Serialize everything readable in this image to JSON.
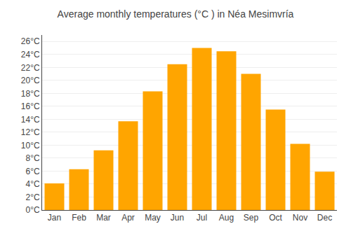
{
  "chart_data": {
    "type": "bar",
    "title": "Average monthly temperatures (°C ) in Néa Mesimvría",
    "categories": [
      "Jan",
      "Feb",
      "Mar",
      "Apr",
      "May",
      "Jun",
      "Jul",
      "Aug",
      "Sep",
      "Oct",
      "Nov",
      "Dec"
    ],
    "values": [
      4.1,
      6.3,
      9.2,
      13.7,
      18.3,
      22.5,
      25.0,
      24.5,
      21.0,
      15.5,
      10.2,
      5.9
    ],
    "color": "#FFA500",
    "ylim": [
      0,
      27
    ],
    "yticks": [
      {
        "value": 0,
        "label": "0°C"
      },
      {
        "value": 2,
        "label": "2°C"
      },
      {
        "value": 4,
        "label": "4°C"
      },
      {
        "value": 6,
        "label": "6°C"
      },
      {
        "value": 8,
        "label": "8°C"
      },
      {
        "value": 10,
        "label": "10°C"
      },
      {
        "value": 12,
        "label": "12°C"
      },
      {
        "value": 14,
        "label": "14°C"
      },
      {
        "value": 16,
        "label": "16°C"
      },
      {
        "value": 18,
        "label": "18°C"
      },
      {
        "value": 20,
        "label": "20°C"
      },
      {
        "value": 22,
        "label": "22°C"
      },
      {
        "value": 24,
        "label": "24°C"
      },
      {
        "value": 26,
        "label": "26°C"
      }
    ],
    "grid": true
  }
}
